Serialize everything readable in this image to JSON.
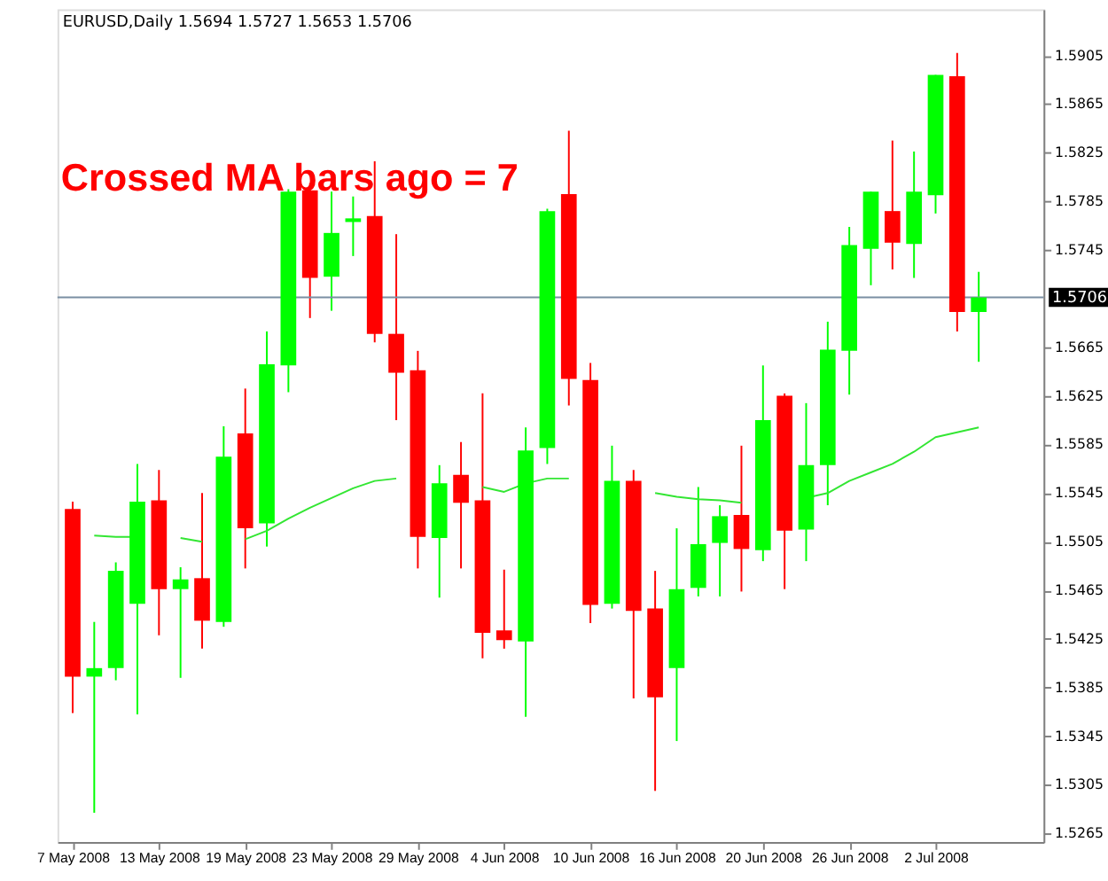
{
  "chart_data": {
    "type": "candlestick",
    "title": "EURUSD,Daily  1.5694 1.5727 1.5653 1.5706",
    "annotations": [
      "Crossed MA bars ago = 7"
    ],
    "categories": [
      "7 May 2008",
      null,
      null,
      null,
      "13 May 2008",
      null,
      null,
      null,
      "19 May 2008",
      null,
      null,
      null,
      "23 May 2008",
      null,
      null,
      null,
      "29 May 2008",
      null,
      null,
      null,
      "4 Jun 2008",
      null,
      null,
      null,
      "10 Jun 2008",
      null,
      null,
      null,
      "16 Jun 2008",
      null,
      null,
      null,
      "20 Jun 2008",
      null,
      null,
      null,
      "26 Jun 2008",
      null,
      null,
      null,
      "2 Jul 2008",
      null,
      null
    ],
    "ohlc": [
      [
        1.5532,
        1.5538,
        1.5364,
        1.5394
      ],
      [
        1.5394,
        1.5439,
        1.5282,
        1.5401
      ],
      [
        1.5401,
        1.5488,
        1.5391,
        1.5481
      ],
      [
        1.5454,
        1.5569,
        1.5363,
        1.5538
      ],
      [
        1.5539,
        1.5564,
        1.5428,
        1.5466
      ],
      [
        1.5466,
        1.5484,
        1.5393,
        1.5474
      ],
      [
        1.5475,
        1.5545,
        1.5417,
        1.544
      ],
      [
        1.5439,
        1.56,
        1.5435,
        1.5575
      ],
      [
        1.5594,
        1.5631,
        1.5483,
        1.5516
      ],
      [
        1.552,
        1.5678,
        1.5501,
        1.5651
      ],
      [
        1.565,
        1.5795,
        1.5628,
        1.5793
      ],
      [
        1.5794,
        1.58,
        1.5689,
        1.5722
      ],
      [
        1.5723,
        1.5793,
        1.5695,
        1.5759
      ],
      [
        1.5768,
        1.5789,
        1.574,
        1.5771
      ],
      [
        1.5773,
        1.5818,
        1.5669,
        1.5676
      ],
      [
        1.5676,
        1.5758,
        1.5605,
        1.5644
      ],
      [
        1.5646,
        1.5662,
        1.5483,
        1.5509
      ],
      [
        1.5508,
        1.5568,
        1.5459,
        1.5553
      ],
      [
        1.556,
        1.5587,
        1.5483,
        1.5537
      ],
      [
        1.5539,
        1.5627,
        1.5409,
        1.543
      ],
      [
        1.5432,
        1.5482,
        1.5417,
        1.5424
      ],
      [
        1.5423,
        1.5599,
        1.5361,
        1.558
      ],
      [
        1.5582,
        1.5779,
        1.5569,
        1.5777
      ],
      [
        1.5791,
        1.5843,
        1.5617,
        1.5639
      ],
      [
        1.5638,
        1.5652,
        1.5438,
        1.5453
      ],
      [
        1.5454,
        1.5584,
        1.545,
        1.5555
      ],
      [
        1.5555,
        1.5564,
        1.5376,
        1.5448
      ],
      [
        1.545,
        1.5481,
        1.53,
        1.5377
      ],
      [
        1.5401,
        1.5516,
        1.5341,
        1.5466
      ],
      [
        1.5467,
        1.555,
        1.546,
        1.5503
      ],
      [
        1.5504,
        1.5535,
        1.546,
        1.5526
      ],
      [
        1.5527,
        1.5584,
        1.5464,
        1.5499
      ],
      [
        1.5498,
        1.565,
        1.5489,
        1.5605
      ],
      [
        1.5625,
        1.5627,
        1.5466,
        1.5514
      ],
      [
        1.5515,
        1.5619,
        1.5489,
        1.5568
      ],
      [
        1.5568,
        1.5686,
        1.5535,
        1.5663
      ],
      [
        1.5662,
        1.5764,
        1.5626,
        1.5749
      ],
      [
        1.5746,
        1.5793,
        1.5716,
        1.5793
      ],
      [
        1.5777,
        1.5835,
        1.5729,
        1.5751
      ],
      [
        1.575,
        1.5826,
        1.5722,
        1.5793
      ],
      [
        1.579,
        1.5889,
        1.5775,
        1.5889
      ],
      [
        1.5888,
        1.5907,
        1.5678,
        1.5694
      ],
      [
        1.5694,
        1.5727,
        1.5653,
        1.5706
      ]
    ],
    "colors": [
      "#ff0000",
      "#00ff00",
      "#00ff00",
      "#00ff00",
      "#ff0000",
      "#00ff00",
      "#ff0000",
      "#00ff00",
      "#ff0000",
      "#00ff00",
      "#00ff00",
      "#ff0000",
      "#00ff00",
      "#00ff00",
      "#ff0000",
      "#ff0000",
      "#ff0000",
      "#00ff00",
      "#ff0000",
      "#ff0000",
      "#ff0000",
      "#00ff00",
      "#00ff00",
      "#ff0000",
      "#ff0000",
      "#00ff00",
      "#ff0000",
      "#ff0000",
      "#00ff00",
      "#00ff00",
      "#00ff00",
      "#ff0000",
      "#00ff00",
      "#ff0000",
      "#00ff00",
      "#00ff00",
      "#00ff00",
      "#00ff00",
      "#ff0000",
      "#00ff00",
      "#00ff00",
      "#ff0000",
      "#00ff00"
    ],
    "series": [
      {
        "type": "line",
        "color": "#33e633",
        "values": [
          null,
          1.551,
          1.5509,
          1.5509,
          null,
          1.5508,
          1.5505,
          null,
          1.5507,
          1.5514,
          1.5524,
          1.5533,
          1.5541,
          1.5549,
          1.5555,
          1.5557,
          null,
          null,
          null,
          1.555,
          1.5546,
          1.5553,
          1.5557,
          1.5557,
          null,
          null,
          null,
          1.5545,
          1.5542,
          1.554,
          1.5539,
          1.5537,
          null,
          null,
          1.5541,
          1.5545,
          1.5555,
          1.5562,
          1.5569,
          1.5579,
          1.5591,
          1.5595,
          1.5599
        ]
      }
    ],
    "ref_lines": [
      {
        "axis": "y",
        "value": 1.5706,
        "label": "1.5706",
        "color": "#7b8fa3"
      }
    ],
    "ylim": [
      1.5258,
      1.5943
    ],
    "yticks": [
      1.5265,
      1.5305,
      1.5345,
      1.5385,
      1.5425,
      1.5465,
      1.5505,
      1.5545,
      1.5585,
      1.5625,
      1.5665,
      1.5745,
      1.5785,
      1.5825,
      1.5865,
      1.5905
    ]
  }
}
